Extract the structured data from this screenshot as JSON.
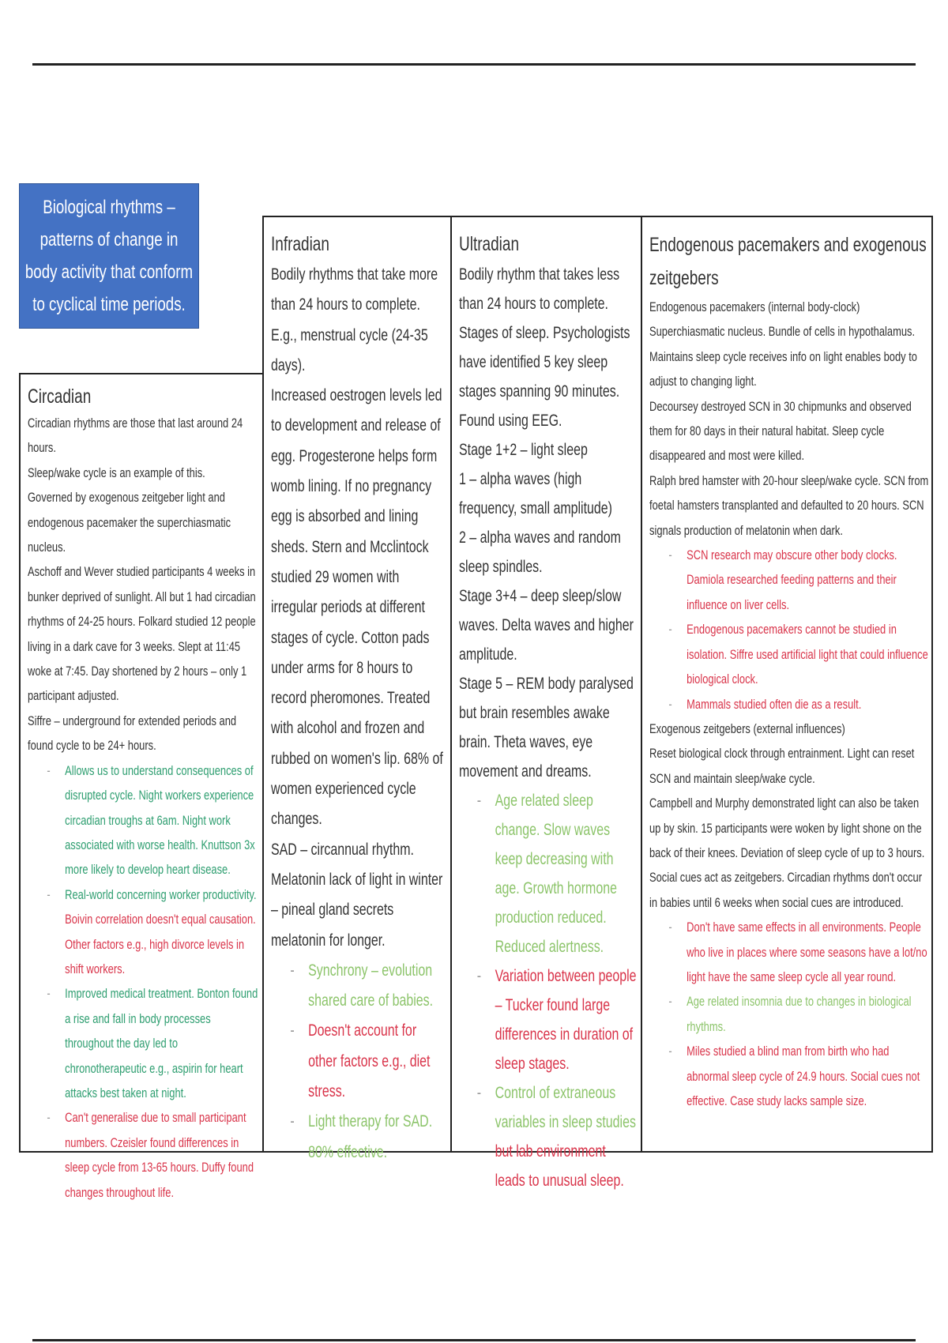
{
  "title_box": "Biological rhythms – patterns of change in body activity that conform to cyclical time periods.",
  "colors": {
    "title_bg": "#4472c4",
    "strength": "#2e9e70",
    "weakness": "#d9344a",
    "light_strength": "#8cc46a"
  },
  "circadian": {
    "heading": "Circadian",
    "paragraphs": [
      "Circadian rhythms are those that last around 24 hours.",
      "Sleep/wake cycle is an example of this.",
      "Governed by exogenous zeitgeber light and endogenous pacemaker the superchiasmatic nucleus.",
      "Aschoff and Wever studied participants 4 weeks in bunker deprived of sunlight. All but 1 had circadian rhythms of 24-25 hours. Folkard studied 12 people living in a dark cave for 3 weeks. Slept at 11:45 woke at 7:45. Day shortened by 2 hours – only 1 participant adjusted.",
      "Siffre – underground for extended periods and found cycle to be 24+ hours."
    ],
    "bullets": [
      {
        "a": "Allows us to understand consequences of disrupted cycle. Night workers experience circadian troughs at 6am. Night work associated with worse health. Knuttson 3x more likely to develop heart disease.",
        "b": ""
      },
      {
        "a": "Real-world concerning worker productivity.",
        "b": "Boivin correlation doesn't equal causation. Other factors e.g., high divorce levels in shift workers."
      },
      {
        "a": "Improved medical treatment. Bonton found a rise and fall in body processes throughout the day led to chronotherapeutic e.g., aspirin for heart attacks best taken at night.",
        "b": ""
      },
      {
        "a": "",
        "b": "Can't generalise due to small participant numbers. Czeisler found differences in sleep cycle from 13-65 hours. Duffy found changes throughout life."
      }
    ]
  },
  "infradian": {
    "heading": "Infradian",
    "paragraphs": [
      "Bodily rhythms that take more than 24 hours to complete. E.g., menstrual cycle (24-35 days).",
      "Increased oestrogen levels led to development and release of egg. Progesterone helps form womb lining. If no pregnancy egg is absorbed and lining sheds. Stern and Mcclintock studied 29 women with irregular periods at different stages of cycle. Cotton pads under arms for 8 hours to record pheromones. Treated with alcohol and frozen and rubbed on women's lip. 68% of women experienced cycle changes.",
      "SAD – circannual rhythm.",
      "Melatonin lack of light in winter – pineal gland secrets melatonin for longer."
    ],
    "bullets": [
      "Synchrony – evolution shared care of babies.",
      "Doesn't account for other factors e.g., diet stress.",
      "Light therapy for SAD. 80% effective."
    ]
  },
  "ultradian": {
    "heading": "Ultradian",
    "paragraphs": [
      "Bodily rhythm that takes less than 24 hours to complete.",
      "Stages of sleep. Psychologists have identified 5 key sleep stages spanning 90 minutes. Found using EEG.",
      "Stage 1+2 – light sleep",
      "1 – alpha waves (high frequency, small amplitude)",
      "2 – alpha waves and random sleep spindles.",
      "Stage 3+4 – deep sleep/slow waves. Delta waves and higher amplitude.",
      "Stage 5 – REM body paralysed but brain resembles awake brain. Theta waves, eye movement and dreams."
    ],
    "bullets": [
      {
        "a": "Age related sleep change. Slow waves keep decreasing with age. Growth hormone production reduced. Reduced alertness.",
        "b": ""
      },
      {
        "a": "",
        "b": "Variation between people – Tucker found large differences in duration of sleep stages."
      },
      {
        "a": "Control of extraneous variables in sleep studies",
        "b": "but lab environment leads to unusual sleep."
      }
    ]
  },
  "endogenous": {
    "heading": "Endogenous pacemakers and exogenous zeitgebers",
    "paragraphs_1": [
      "Endogenous pacemakers (internal body-clock)",
      "Superchiasmatic nucleus. Bundle of cells in hypothalamus.",
      "Maintains sleep cycle receives info on light enables body to adjust to changing light.",
      "Decoursey destroyed SCN in 30 chipmunks and observed them for 80 days in their natural habitat. Sleep cycle disappeared and most were killed.",
      "Ralph bred hamster with 20-hour sleep/wake cycle. SCN from foetal hamsters transplanted and defaulted to 20 hours. SCN signals production of melatonin when dark."
    ],
    "bullets_1": [
      "SCN research may obscure other body clocks. Damiola researched feeding patterns and their influence on liver cells.",
      "Endogenous pacemakers cannot be studied in isolation. Siffre used artificial light that could influence biological clock.",
      "Mammals studied often die as a result."
    ],
    "paragraphs_2": [
      "Exogenous zeitgebers (external influences)",
      "Reset biological clock through entrainment. Light can reset SCN and maintain sleep/wake cycle.",
      "Campbell and Murphy demonstrated light can also be taken up by skin. 15 participants were woken by light shone on the back of their knees. Deviation of sleep cycle of up to 3 hours.",
      "Social cues act as zeitgebers. Circadian rhythms don't occur in babies until 6 weeks when social cues are introduced."
    ],
    "bullets_2": [
      "Don't have same effects in all environments. People who live in places where some seasons have a lot/no light have the same sleep cycle all year round.",
      "Age related insomnia due to changes in biological rhythms.",
      "Miles studied a blind man from birth who had abnormal sleep cycle of 24.9 hours. Social cues not effective. Case study lacks sample size."
    ]
  }
}
